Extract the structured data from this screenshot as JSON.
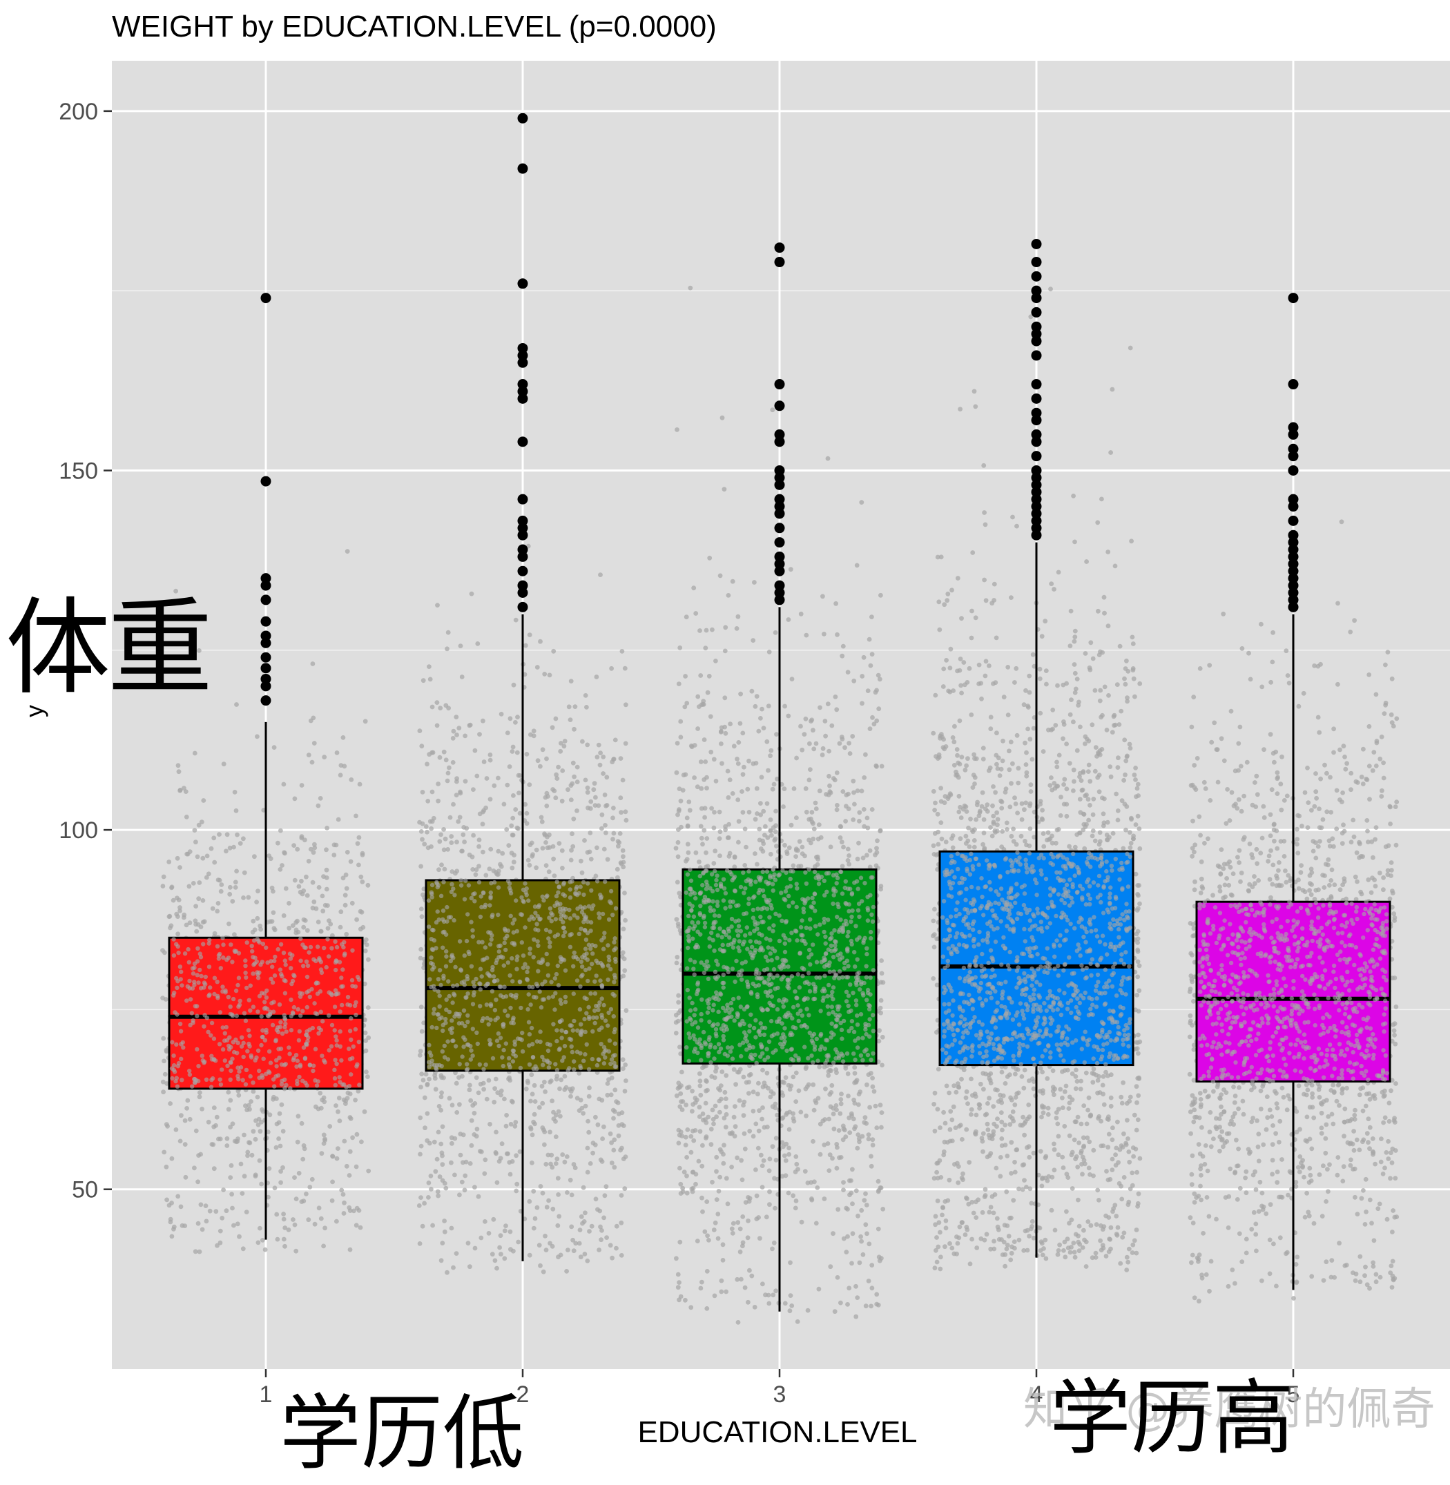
{
  "chart_data": {
    "type": "box",
    "title": "WEIGHT by EDUCATION.LEVEL (p=0.0000)",
    "xlabel": "EDUCATION.LEVEL",
    "ylabel": "y",
    "categories": [
      "1",
      "2",
      "3",
      "4",
      "5"
    ],
    "yticks": [
      50,
      100,
      150,
      200
    ],
    "ylim": [
      25,
      207
    ],
    "grid": true,
    "background": "#DEDEDE",
    "boxes": [
      {
        "category": "1",
        "color": "#FF1A1A",
        "min": 43,
        "q1": 64,
        "median": 74,
        "q3": 85,
        "max": 115,
        "outliers": [
          174,
          148.5,
          135,
          134,
          132,
          129,
          127,
          126,
          124,
          122.5,
          121,
          120,
          118
        ]
      },
      {
        "category": "2",
        "color": "#676400",
        "min": 40,
        "q1": 66.5,
        "median": 78,
        "q3": 93,
        "max": 130,
        "outliers": [
          199,
          192,
          176,
          167,
          166,
          165,
          162,
          161,
          160,
          154,
          146,
          143,
          142,
          141,
          139,
          138,
          136,
          134,
          133,
          131
        ]
      },
      {
        "category": "3",
        "color": "#009419",
        "min": 33,
        "q1": 67.5,
        "median": 80,
        "q3": 94.5,
        "max": 131,
        "outliers": [
          181,
          179,
          162,
          159,
          155,
          154,
          150,
          149,
          148,
          146,
          145,
          144,
          142,
          140,
          138,
          137,
          136,
          134,
          133,
          132
        ]
      },
      {
        "category": "4",
        "color": "#0081F2",
        "min": 40.5,
        "q1": 67.3,
        "median": 81,
        "q3": 97,
        "max": 140,
        "outliers": [
          181.5,
          179,
          177,
          175,
          174,
          172,
          170,
          169,
          168,
          166,
          162,
          160,
          158,
          157,
          155,
          154,
          152,
          150,
          149,
          148,
          147,
          146,
          145,
          144,
          143,
          142,
          141
        ]
      },
      {
        "category": "5",
        "color": "#DC05E6",
        "min": 36,
        "q1": 65,
        "median": 76.5,
        "q3": 90,
        "max": 130,
        "outliers": [
          174,
          162,
          156,
          155,
          153,
          152,
          150,
          146,
          145,
          143,
          141,
          140,
          139,
          138,
          137,
          136,
          135,
          134,
          133,
          132,
          131
        ]
      }
    ],
    "jitter_points": {
      "color": "#A6A6A6",
      "counts": [
        900,
        1250,
        1650,
        1850,
        1500
      ]
    }
  },
  "annotations": {
    "weight": "体重",
    "low_education": "学历低",
    "high_education": "学历高"
  },
  "watermark": "知乎 @养鹰树的佩奇"
}
